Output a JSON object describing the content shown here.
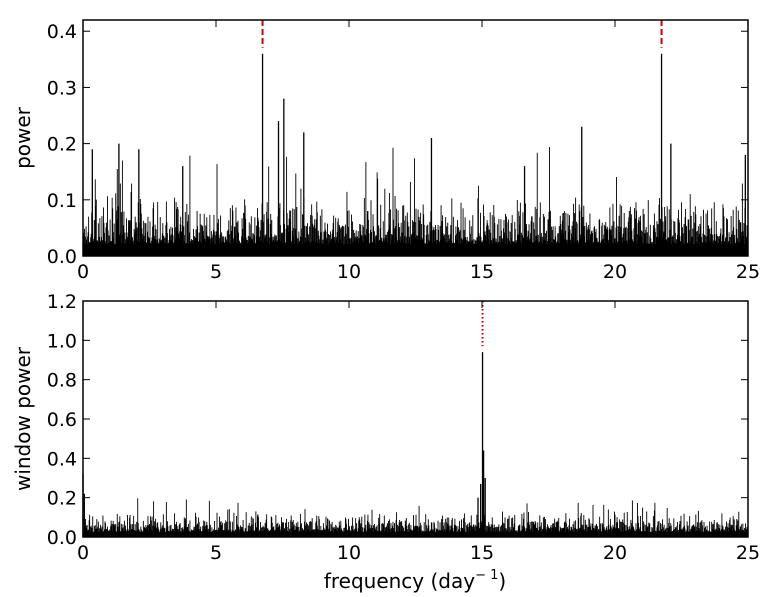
{
  "chart_data": [
    {
      "type": "line",
      "id": "top",
      "ylabel": "power",
      "xlim": [
        0,
        25
      ],
      "ylim": [
        0,
        0.42
      ],
      "xticks": [
        "0",
        "5",
        "10",
        "15",
        "20",
        "25"
      ],
      "xtick_values": [
        0,
        5,
        10,
        15,
        20,
        25
      ],
      "yticks": [
        "0.0",
        "0.1",
        "0.2",
        "0.3",
        "0.4"
      ],
      "ytick_values": [
        0,
        0.1,
        0.2,
        0.3,
        0.4
      ],
      "noise_level": 0.06,
      "noise_max": 0.2,
      "peaks": [
        {
          "x": 0.35,
          "y": 0.19
        },
        {
          "x": 1.35,
          "y": 0.2
        },
        {
          "x": 2.1,
          "y": 0.19
        },
        {
          "x": 3.75,
          "y": 0.16
        },
        {
          "x": 6.75,
          "y": 0.36
        },
        {
          "x": 7.35,
          "y": 0.24
        },
        {
          "x": 7.55,
          "y": 0.28
        },
        {
          "x": 8.3,
          "y": 0.22
        },
        {
          "x": 13.1,
          "y": 0.21
        },
        {
          "x": 16.6,
          "y": 0.16
        },
        {
          "x": 18.75,
          "y": 0.23
        },
        {
          "x": 21.75,
          "y": 0.36
        },
        {
          "x": 22.1,
          "y": 0.2
        },
        {
          "x": 24.9,
          "y": 0.18
        }
      ],
      "markers": [
        {
          "x": 6.75,
          "style": "dashed",
          "color": "#cc0000"
        },
        {
          "x": 21.75,
          "style": "dashed",
          "color": "#cc0000"
        }
      ]
    },
    {
      "type": "line",
      "id": "bottom",
      "xlabel": "frequency (day",
      "xlabel_superscript": "− 1",
      "xlabel_suffix": ")",
      "ylabel": "window power",
      "xlim": [
        0,
        25
      ],
      "ylim": [
        0,
        1.2
      ],
      "xticks": [
        "0",
        "5",
        "10",
        "15",
        "20",
        "25"
      ],
      "xtick_values": [
        0,
        5,
        10,
        15,
        20,
        25
      ],
      "yticks": [
        "0.0",
        "0.2",
        "0.4",
        "0.6",
        "0.8",
        "1.0",
        "1.2"
      ],
      "ytick_values": [
        0,
        0.2,
        0.4,
        0.6,
        0.8,
        1.0,
        1.2
      ],
      "noise_level": 0.07,
      "noise_max": 0.2,
      "peaks": [
        {
          "x": 0.0,
          "y": 0.32
        },
        {
          "x": 0.05,
          "y": 0.22
        },
        {
          "x": 14.85,
          "y": 0.2
        },
        {
          "x": 14.95,
          "y": 0.27
        },
        {
          "x": 15.02,
          "y": 0.94
        },
        {
          "x": 15.06,
          "y": 0.44
        },
        {
          "x": 15.12,
          "y": 0.3
        }
      ],
      "markers": [
        {
          "x": 15.02,
          "style": "dotted",
          "color": "#cc0000"
        }
      ]
    }
  ]
}
